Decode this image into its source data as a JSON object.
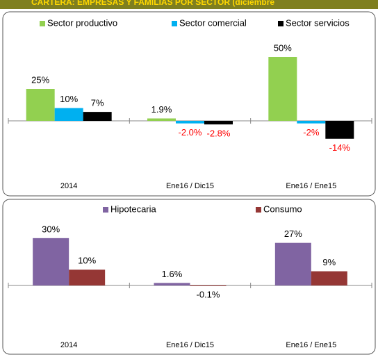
{
  "header": "CARTERA: EMPRESAS Y FAMILIAS POR SECTOR (diciembre",
  "chart_data": [
    {
      "type": "bar",
      "categories": [
        "2014",
        "Ene16 / Dic15",
        "Ene16 / Ene15"
      ],
      "series": [
        {
          "name": "Sector productivo",
          "color": "#92d050",
          "values": [
            25,
            1.9,
            50
          ],
          "value_labels": [
            "25%",
            "1.9%",
            "50%"
          ]
        },
        {
          "name": "Sector comercial",
          "color": "#00b0f0",
          "values": [
            10,
            -2.0,
            -2
          ],
          "value_labels": [
            "10%",
            "-2.0%",
            "-2%"
          ]
        },
        {
          "name": "Sector servicios",
          "color": "#000000",
          "values": [
            7,
            -2.8,
            -14
          ],
          "value_labels": [
            "7%",
            "-2.8%",
            "-14%"
          ]
        }
      ],
      "ylim": [
        -30,
        60
      ],
      "negative_label_color": "#ff0000"
    },
    {
      "type": "bar",
      "categories": [
        "2014",
        "Ene16 / Dic15",
        "Ene16 / Ene15"
      ],
      "series": [
        {
          "name": "Hipotecaria",
          "color": "#8064a2",
          "values": [
            30,
            1.6,
            27
          ],
          "value_labels": [
            "30%",
            "1.6%",
            "27%"
          ]
        },
        {
          "name": "Consumo",
          "color": "#953735",
          "values": [
            10,
            -0.1,
            9
          ],
          "value_labels": [
            "10%",
            "-0.1%",
            "9%"
          ]
        }
      ],
      "ylim": [
        -25,
        35
      ],
      "negative_label_color": "#000000"
    }
  ]
}
